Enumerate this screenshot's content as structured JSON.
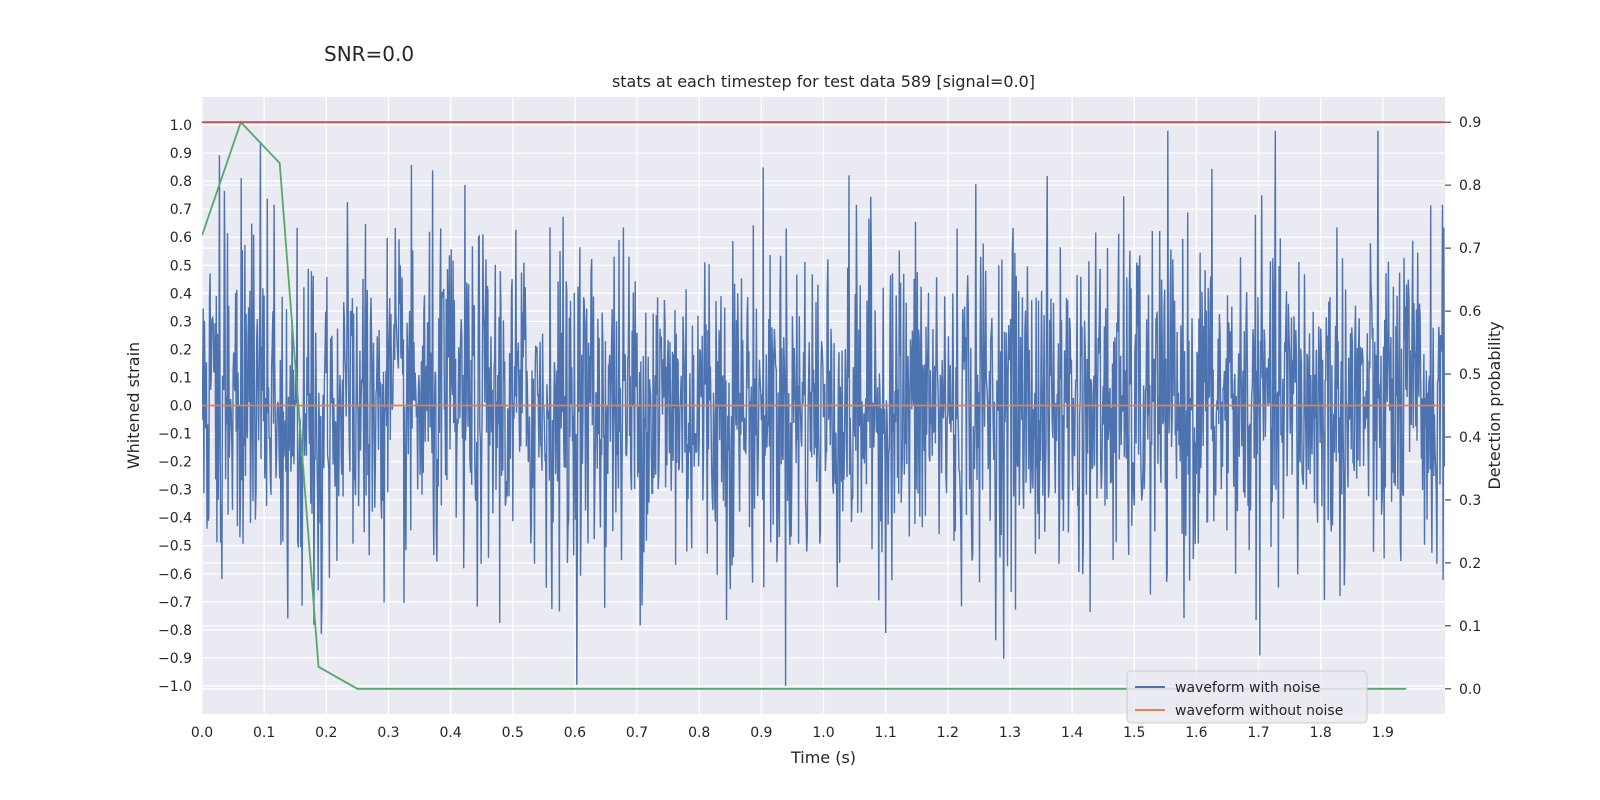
{
  "figure": {
    "suptitle": "SNR=0.0"
  },
  "chart_data": {
    "type": "line",
    "title": "stats at each timestep for test data 589 [signal=0.0]",
    "xlabel": "Time (s)",
    "ylabel": "Whitened strain",
    "y2label": "Detection probability",
    "xlim": [
      0.0,
      2.0
    ],
    "ylim": [
      -1.1,
      1.1
    ],
    "y2lim": [
      -0.04,
      0.94
    ],
    "x_ticks": [
      0.0,
      0.1,
      0.2,
      0.3,
      0.4,
      0.5,
      0.6,
      0.7,
      0.8,
      0.9,
      1.0,
      1.1,
      1.2,
      1.3,
      1.4,
      1.5,
      1.6,
      1.7,
      1.8,
      1.9
    ],
    "y_ticks": [
      1.0,
      0.9,
      0.8,
      0.7,
      0.6,
      0.5,
      0.4,
      0.3,
      0.2,
      0.1,
      0.0,
      -0.1,
      -0.2,
      -0.3,
      -0.4,
      -0.5,
      -0.6,
      -0.7,
      -0.8,
      -0.9,
      -1.0
    ],
    "y2_ticks": [
      0.9,
      0.8,
      0.7,
      0.6,
      0.5,
      0.4,
      0.3,
      0.2,
      0.1,
      0.0
    ],
    "grid": true,
    "legend_position": "lower-right",
    "series": [
      {
        "name": "waveform with noise",
        "axis": "left",
        "color": "#4c72b0",
        "x_start": 0.0,
        "x_end": 2.0,
        "points": 2000,
        "approx_range": [
          -1.0,
          0.98
        ],
        "note": "dense whitened noise"
      },
      {
        "name": "waveform without noise",
        "axis": "left",
        "color": "#dd8452",
        "x": [
          0.0,
          2.0
        ],
        "values": [
          0.0,
          0.0
        ]
      },
      {
        "name": "detection probability",
        "axis": "right",
        "color": "#55a868",
        "x": [
          0.0,
          0.0625,
          0.125,
          0.1875,
          0.25,
          0.3125,
          0.5,
          1.0,
          1.5,
          1.9375
        ],
        "values": [
          0.72,
          0.9,
          0.835,
          0.035,
          0.0,
          0.0,
          0.0,
          0.0,
          0.0,
          0.0
        ]
      },
      {
        "name": "threshold",
        "axis": "right",
        "color": "#c44e52",
        "x": [
          0.0,
          2.0
        ],
        "values": [
          0.9,
          0.9
        ]
      }
    ]
  },
  "legend": [
    {
      "label": "waveform with noise",
      "color": "#4c72b0"
    },
    {
      "label": "waveform without noise",
      "color": "#dd8452"
    }
  ]
}
